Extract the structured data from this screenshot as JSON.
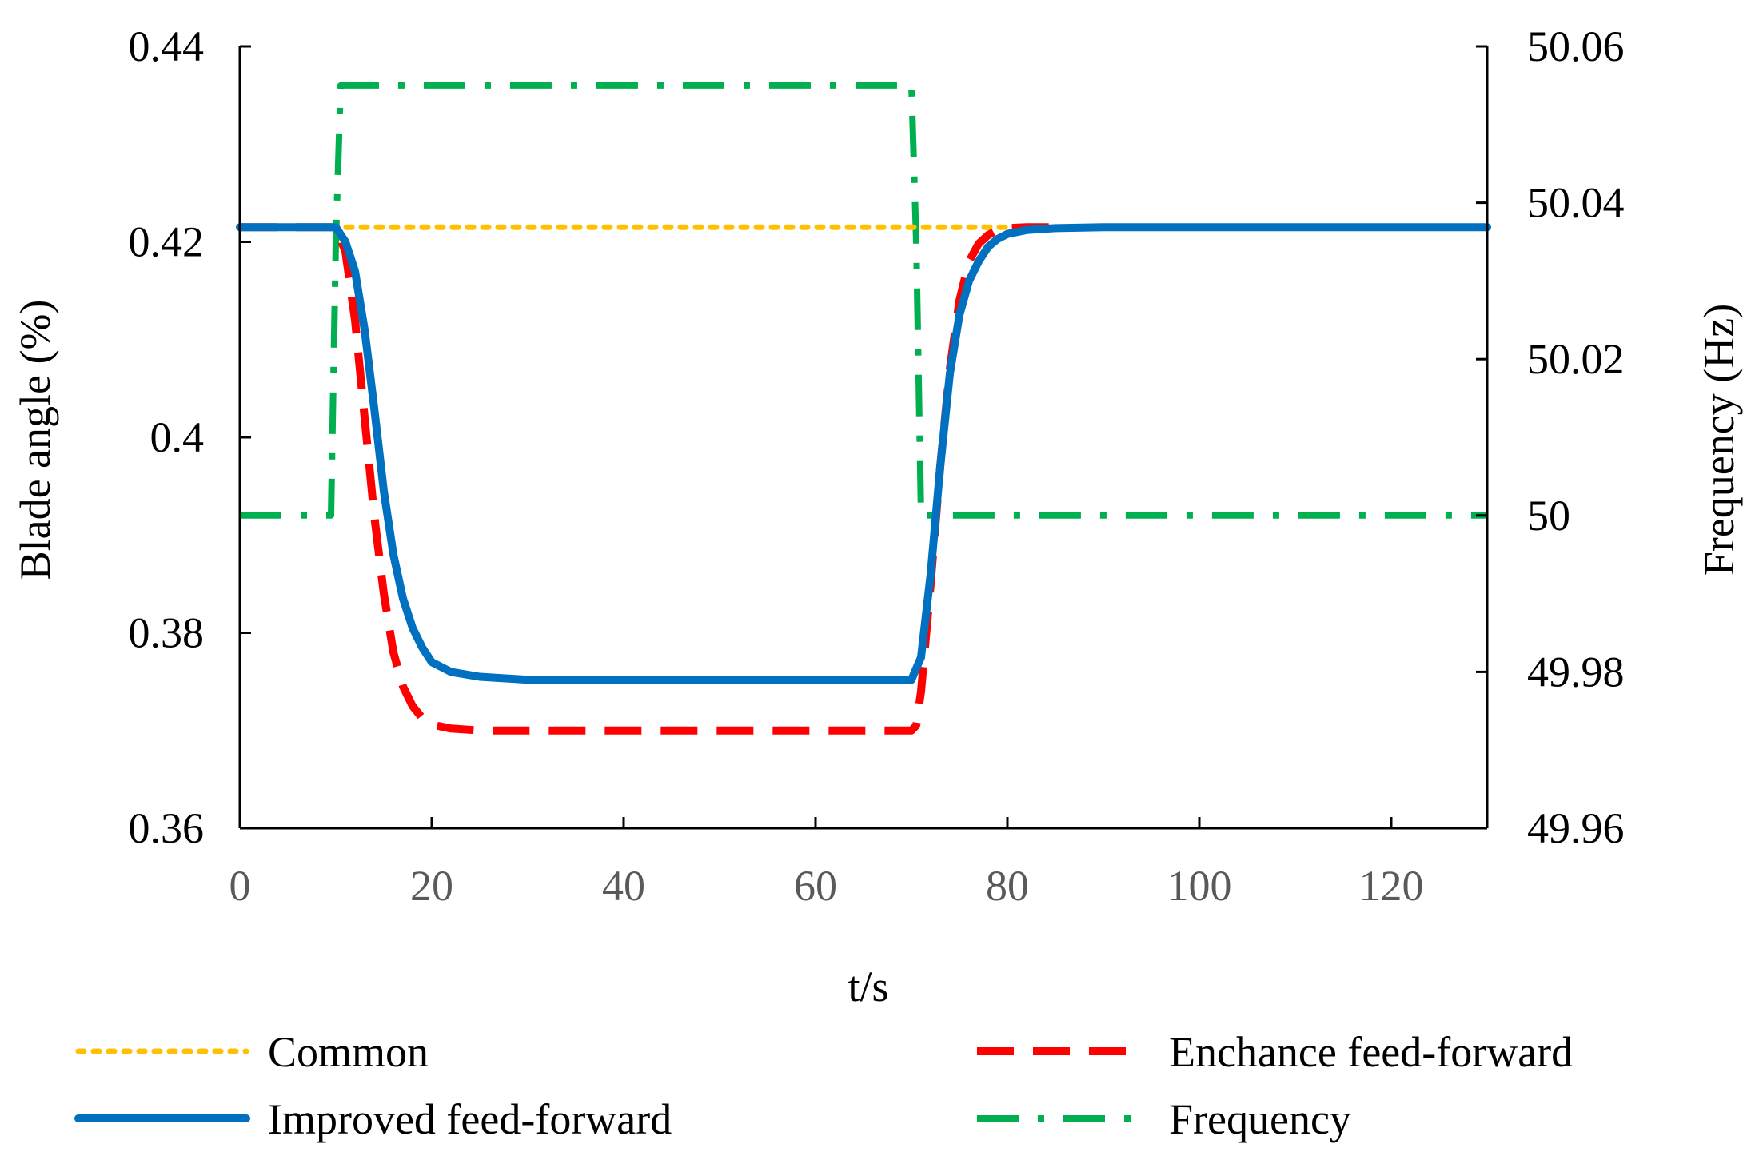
{
  "chart_data": {
    "type": "line",
    "xlabel": "t/s",
    "ylabel": "Blade angle (%)",
    "y2label": "Frequency (Hz)",
    "xlim": [
      0,
      130
    ],
    "ylim": [
      0.36,
      0.44
    ],
    "y2lim": [
      49.96,
      50.06
    ],
    "xticks": [
      0,
      20,
      40,
      60,
      80,
      100,
      120
    ],
    "xtick_labels": [
      "0",
      "20",
      "40",
      "60",
      "80",
      "100",
      "120"
    ],
    "yticks": [
      0.36,
      0.38,
      0.4,
      0.42,
      0.44
    ],
    "ytick_labels": [
      "0.36",
      "0.38",
      "0.4",
      "0.42",
      "0.44"
    ],
    "y2ticks": [
      49.96,
      49.98,
      50,
      50.02,
      50.04,
      50.06
    ],
    "y2tick_labels": [
      "49.96",
      "49.98",
      "50",
      "50.02",
      "50.04",
      "50.06"
    ],
    "grid": false,
    "legend_position": "bottom",
    "series": [
      {
        "name": "Common",
        "axis": "left",
        "style": "dotted",
        "color": "#FFC000",
        "x": [
          0,
          10,
          20,
          40,
          60,
          70,
          80,
          90,
          100,
          110,
          120,
          130
        ],
        "y": [
          0.4215,
          0.4215,
          0.4215,
          0.4215,
          0.4215,
          0.4215,
          0.4215,
          0.4215,
          0.4215,
          0.4215,
          0.4215,
          0.4215
        ]
      },
      {
        "name": "Enchance feed-forward",
        "axis": "left",
        "style": "dashed",
        "color": "#FF0000",
        "x": [
          0,
          10,
          11,
          12,
          13,
          14,
          15,
          16,
          17,
          18,
          19,
          20,
          22,
          25,
          30,
          40,
          50,
          60,
          70,
          70.5,
          71,
          72,
          73,
          74,
          75,
          76,
          77,
          78,
          79,
          80,
          82,
          85
        ],
        "y": [
          0.4215,
          0.4215,
          0.419,
          0.412,
          0.402,
          0.392,
          0.384,
          0.378,
          0.3745,
          0.3725,
          0.3713,
          0.3706,
          0.3702,
          0.37,
          0.37,
          0.37,
          0.37,
          0.37,
          0.37,
          0.3705,
          0.374,
          0.385,
          0.397,
          0.407,
          0.414,
          0.418,
          0.4198,
          0.4207,
          0.4212,
          0.4214,
          0.4215,
          0.4215
        ]
      },
      {
        "name": "Improved feed-forward",
        "axis": "left",
        "style": "solid",
        "color": "#0070C0",
        "x": [
          0,
          10,
          11,
          12,
          13,
          14,
          15,
          16,
          17,
          18,
          19,
          20,
          22,
          25,
          30,
          40,
          50,
          60,
          70,
          71,
          72,
          73,
          74,
          75,
          76,
          77,
          78,
          79,
          80,
          82,
          85,
          90,
          100,
          110,
          120,
          130
        ],
        "y": [
          0.4215,
          0.4215,
          0.42,
          0.417,
          0.411,
          0.403,
          0.3945,
          0.388,
          0.3835,
          0.3805,
          0.3785,
          0.377,
          0.376,
          0.3755,
          0.3752,
          0.3752,
          0.3752,
          0.3752,
          0.3752,
          0.3775,
          0.386,
          0.397,
          0.4065,
          0.4125,
          0.416,
          0.418,
          0.4195,
          0.4203,
          0.4208,
          0.4212,
          0.4214,
          0.4215,
          0.4215,
          0.4215,
          0.4215,
          0.4215
        ]
      },
      {
        "name": "Frequency",
        "axis": "right",
        "style": "dashdot",
        "color": "#00B050",
        "x": [
          0,
          9.5,
          10,
          10.5,
          70,
          70.5,
          71,
          130
        ],
        "y": [
          50,
          50,
          50.035,
          50.055,
          50.055,
          50.035,
          50,
          50
        ]
      }
    ]
  }
}
